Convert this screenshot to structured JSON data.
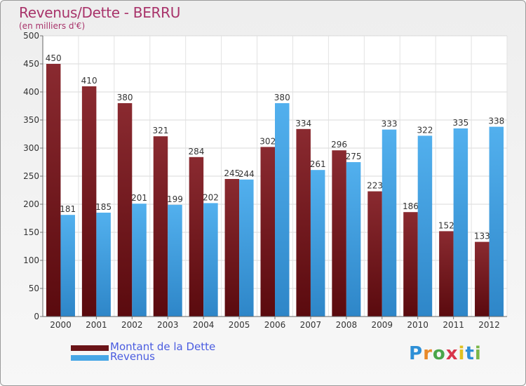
{
  "chart_data": {
    "type": "bar",
    "title": "Revenus/Dette - BERRU",
    "subtitle": "(en milliers d'€)",
    "categories": [
      "2000",
      "2001",
      "2002",
      "2003",
      "2004",
      "2005",
      "2006",
      "2007",
      "2008",
      "2009",
      "2010",
      "2011",
      "2012"
    ],
    "series": [
      {
        "name": "Montant de la Dette",
        "color": "#7a1e22",
        "values": [
          450,
          410,
          380,
          321,
          284,
          245,
          302,
          334,
          296,
          223,
          186,
          152,
          133
        ]
      },
      {
        "name": "Revenus",
        "color": "#47a6e6",
        "values": [
          181,
          185,
          201,
          199,
          202,
          244,
          380,
          261,
          275,
          333,
          322,
          335,
          338
        ]
      }
    ],
    "ylim": [
      0,
      500
    ],
    "yticks": [
      0,
      50,
      100,
      150,
      200,
      250,
      300,
      350,
      400,
      450,
      500
    ],
    "grid": true,
    "legend": "bottom-left"
  },
  "logo": {
    "letters": [
      "P",
      "r",
      "o",
      "x",
      "i",
      "t",
      "i"
    ],
    "colors": [
      "#2d8fd6",
      "#e8892a",
      "#4aa64a",
      "#d9354a",
      "#e0c020",
      "#2d8fd6",
      "#7ab648"
    ]
  }
}
